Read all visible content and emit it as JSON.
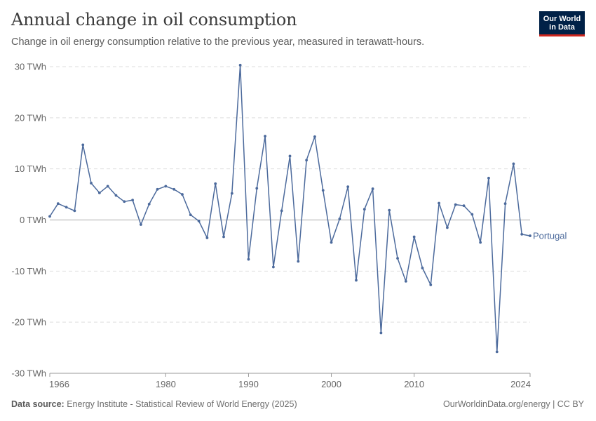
{
  "header": {
    "title": "Annual change in oil consumption",
    "subtitle": "Change in oil energy consumption relative to the previous year, measured in terawatt-hours."
  },
  "logo": {
    "line1": "Our World",
    "line2": "in Data",
    "bg_color": "#002147",
    "accent_color": "#ce261e"
  },
  "footer": {
    "source_label": "Data source:",
    "source_text": "Energy Institute - Statistical Review of World Energy (2025)",
    "right_text": "OurWorldinData.org/energy | CC BY"
  },
  "chart_data": {
    "type": "line",
    "x_tick_labels": [
      "1966",
      "1980",
      "1990",
      "2000",
      "2010",
      "2024"
    ],
    "y_tick_labels": [
      "30 TWh",
      "20 TWh",
      "10 TWh",
      "0 TWh",
      "-10 TWh",
      "-20 TWh",
      "-30 TWh"
    ],
    "x_ticks": [
      1966,
      1980,
      1990,
      2000,
      2010,
      2024
    ],
    "y_ticks": [
      30,
      20,
      10,
      0,
      -10,
      -20,
      -30
    ],
    "xlim": [
      1966,
      2024
    ],
    "ylim": [
      -30,
      30
    ],
    "grid": "horizontal dashed",
    "line_color": "#4c6a9c",
    "series": [
      {
        "name": "Portugal",
        "x": [
          1966,
          1967,
          1968,
          1969,
          1970,
          1971,
          1972,
          1973,
          1974,
          1975,
          1976,
          1977,
          1978,
          1979,
          1980,
          1981,
          1982,
          1983,
          1984,
          1985,
          1986,
          1987,
          1988,
          1989,
          1990,
          1991,
          1992,
          1993,
          1994,
          1995,
          1996,
          1997,
          1998,
          1999,
          2000,
          2001,
          2002,
          2003,
          2004,
          2005,
          2006,
          2007,
          2008,
          2009,
          2010,
          2011,
          2012,
          2013,
          2014,
          2015,
          2016,
          2017,
          2018,
          2019,
          2020,
          2021,
          2022,
          2023,
          2024
        ],
        "values": [
          0.7,
          3.2,
          2.5,
          1.8,
          14.7,
          7.2,
          5.3,
          6.6,
          4.8,
          3.6,
          3.9,
          -0.9,
          3.1,
          6.0,
          6.6,
          6.0,
          5.0,
          1.0,
          -0.2,
          -3.5,
          7.1,
          -3.3,
          5.2,
          30.3,
          -7.7,
          6.2,
          16.4,
          -9.2,
          1.8,
          12.5,
          -8.1,
          11.7,
          16.3,
          5.8,
          -4.4,
          0.2,
          6.5,
          -11.8,
          2.1,
          6.1,
          -22.1,
          1.9,
          -7.5,
          -12.0,
          -3.3,
          -9.4,
          -12.7,
          3.3,
          -1.5,
          3.0,
          2.8,
          1.1,
          -4.4,
          8.2,
          -25.8,
          3.2,
          11.0,
          -2.8,
          -3.1
        ]
      }
    ]
  }
}
